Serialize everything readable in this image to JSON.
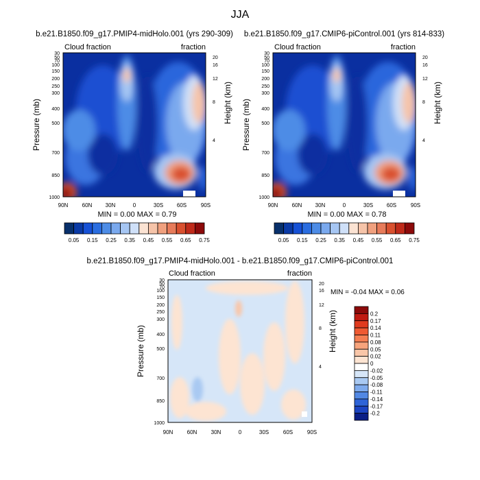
{
  "title": "JJA",
  "chart_data": [
    {
      "type": "heatmap",
      "title": "b.e21.B1850.f09_g17.PMIP4-midHolo.001 (yrs 290-309)",
      "left_string": "Cloud fraction",
      "right_string": "fraction",
      "xlabel": "",
      "ylabel": "Pressure (mb)",
      "y2label": "Height (km)",
      "x_ticks": [
        "90N",
        "60N",
        "30N",
        "0",
        "30S",
        "60S",
        "90S"
      ],
      "y_ticks": [
        "30",
        "50",
        "70",
        "100",
        "150",
        "200",
        "250",
        "300",
        "400",
        "500",
        "700",
        "850",
        "1000"
      ],
      "y2_ticks": [
        "20",
        "16",
        "12",
        "8",
        "4"
      ],
      "stats": "MIN =   0.00  MAX =   0.79",
      "colorbar": {
        "levels": [
          "0.05",
          "0.15",
          "0.25",
          "0.35",
          "0.45",
          "0.55",
          "0.65",
          "0.75"
        ],
        "colors": [
          "#08306b",
          "#0a3aa6",
          "#1651d6",
          "#2a6de0",
          "#4d8ce6",
          "#7aa9ee",
          "#a6c6f3",
          "#cfe0f8",
          "#fbe3d3",
          "#f6c4a9",
          "#f0a07e",
          "#e77b5a",
          "#d9502f",
          "#bf2a1a",
          "#8c0a0a"
        ]
      },
      "xlim": [
        90,
        -90
      ],
      "ylim": [
        1000,
        30
      ]
    },
    {
      "type": "heatmap",
      "title": "b.e21.B1850.f09_g17.CMIP6-piControl.001 (yrs 814-833)",
      "left_string": "Cloud fraction",
      "right_string": "fraction",
      "xlabel": "",
      "ylabel": "Pressure (mb)",
      "y2label": "Height (km)",
      "x_ticks": [
        "90N",
        "60N",
        "30N",
        "0",
        "30S",
        "60S",
        "90S"
      ],
      "y_ticks": [
        "30",
        "50",
        "70",
        "100",
        "150",
        "200",
        "250",
        "300",
        "400",
        "500",
        "700",
        "850",
        "1000"
      ],
      "y2_ticks": [
        "20",
        "16",
        "12",
        "8",
        "4"
      ],
      "stats": "MIN =   0.00  MAX =   0.78",
      "colorbar": {
        "levels": [
          "0.05",
          "0.15",
          "0.25",
          "0.35",
          "0.45",
          "0.55",
          "0.65",
          "0.75"
        ],
        "colors": [
          "#08306b",
          "#0a3aa6",
          "#1651d6",
          "#2a6de0",
          "#4d8ce6",
          "#7aa9ee",
          "#a6c6f3",
          "#cfe0f8",
          "#fbe3d3",
          "#f6c4a9",
          "#f0a07e",
          "#e77b5a",
          "#d9502f",
          "#bf2a1a",
          "#8c0a0a"
        ]
      },
      "xlim": [
        90,
        -90
      ],
      "ylim": [
        1000,
        30
      ]
    },
    {
      "type": "heatmap",
      "title": "b.e21.B1850.f09_g17.PMIP4-midHolo.001 - b.e21.B1850.f09_g17.CMIP6-piControl.001",
      "left_string": "Cloud fraction",
      "right_string": "fraction",
      "xlabel": "",
      "ylabel": "Pressure (mb)",
      "y2label": "Height (km)",
      "x_ticks": [
        "90N",
        "60N",
        "30N",
        "0",
        "30S",
        "60S",
        "90S"
      ],
      "y_ticks": [
        "30",
        "50",
        "70",
        "100",
        "150",
        "200",
        "250",
        "300",
        "400",
        "500",
        "700",
        "850",
        "1000"
      ],
      "y2_ticks": [
        "20",
        "16",
        "12",
        "8",
        "4"
      ],
      "stats": "MIN =  -0.04  MAX =    0.06",
      "colorbar": {
        "levels": [
          "0.2",
          "0.17",
          "0.14",
          "0.11",
          "0.08",
          "0.05",
          "0.02",
          "0",
          "-0.02",
          "-0.05",
          "-0.08",
          "-0.11",
          "-0.14",
          "-0.17",
          "-0.2"
        ],
        "colors": [
          "#8c0a0a",
          "#c01a12",
          "#e03a1e",
          "#ef5a32",
          "#f47e52",
          "#f7a47c",
          "#f9c6a8",
          "#fde4d2",
          "#ffffff",
          "#d6e6f8",
          "#a9c9f2",
          "#7eaaec",
          "#5288e4",
          "#2e64d8",
          "#1b44c2",
          "#0a1e86"
        ]
      },
      "xlim": [
        90,
        -90
      ],
      "ylim": [
        1000,
        30
      ]
    }
  ]
}
